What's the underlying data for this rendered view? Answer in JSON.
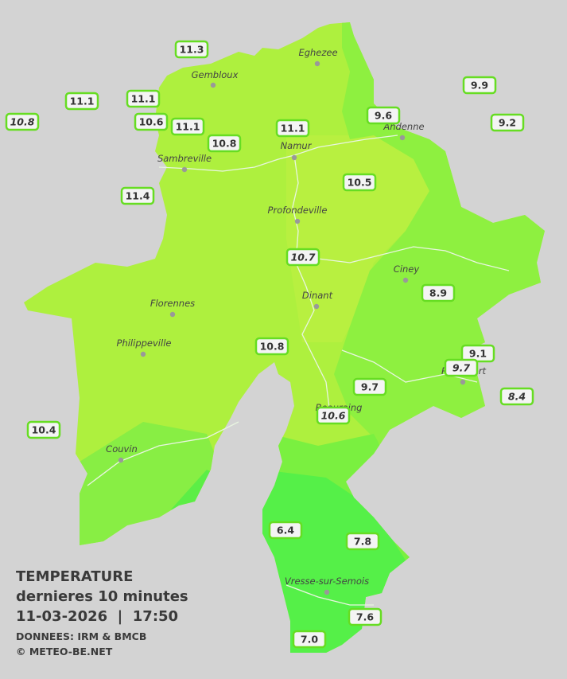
{
  "towns": [
    "Eghezee",
    "Gembloux",
    "Andenne",
    "Namur",
    "Sambreville",
    "Profondeville",
    "Ciney",
    "Dinant",
    "Florennes",
    "Philippeville",
    "Rochefort",
    "Beauraing",
    "Couvin",
    "Vresse-sur-Semois"
  ],
  "stations": [
    {
      "value": "11.3",
      "italic": false
    },
    {
      "value": "9.9",
      "italic": false
    },
    {
      "value": "11.1",
      "italic": false
    },
    {
      "value": "11.1",
      "italic": false
    },
    {
      "value": "10.8",
      "italic": true
    },
    {
      "value": "10.6",
      "italic": false
    },
    {
      "value": "11.1",
      "italic": false
    },
    {
      "value": "9.6",
      "italic": false
    },
    {
      "value": "9.2",
      "italic": false
    },
    {
      "value": "11.1",
      "italic": false
    },
    {
      "value": "10.8",
      "italic": false
    },
    {
      "value": "11.4",
      "italic": false
    },
    {
      "value": "10.5",
      "italic": false
    },
    {
      "value": "10.7",
      "italic": true
    },
    {
      "value": "8.9",
      "italic": false
    },
    {
      "value": "10.8",
      "italic": false
    },
    {
      "value": "9.1",
      "italic": false
    },
    {
      "value": "9.7",
      "italic": true
    },
    {
      "value": "8.4",
      "italic": true
    },
    {
      "value": "9.7",
      "italic": false
    },
    {
      "value": "10.6",
      "italic": true
    },
    {
      "value": "10.4",
      "italic": false
    },
    {
      "value": "6.4",
      "italic": false
    },
    {
      "value": "7.8",
      "italic": false
    },
    {
      "value": "7.6",
      "italic": false
    },
    {
      "value": "7.0",
      "italic": false
    }
  ],
  "legend": {
    "title": "TEMPERATURE",
    "subtitle": "dernieres 10 minutes",
    "datetime": "11-03-2026  |  17:50",
    "source": "DONNEES: IRM & BMCB",
    "copyright": "© METEO-BE.NET"
  }
}
